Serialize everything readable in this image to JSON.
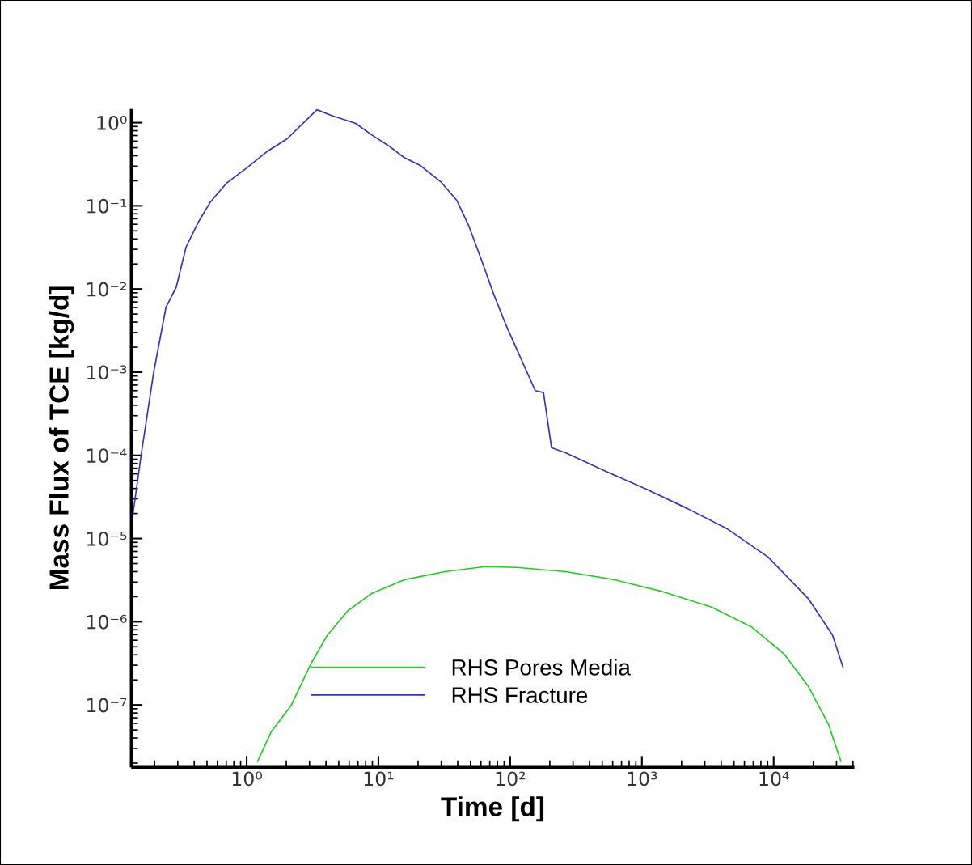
{
  "chart_data": {
    "type": "line",
    "xlabel": "Time [d]",
    "ylabel": "Mass Flux of TCE [kg/d]",
    "log": "xy",
    "grid": false,
    "legend": "bottom",
    "marker": "none",
    "line_style": "solid",
    "xlim": [
      0.133,
      41000
    ],
    "ylim": [
      1.78e-08,
      1.46
    ],
    "xticks": [
      {
        "value": 1,
        "label": "10⁰"
      },
      {
        "value": 10,
        "label": "10¹"
      },
      {
        "value": 100,
        "label": "10²"
      },
      {
        "value": 1000,
        "label": "10³"
      },
      {
        "value": 10000,
        "label": "10⁴"
      }
    ],
    "yticks": [
      {
        "value": 1e-07,
        "label": "10⁻⁷"
      },
      {
        "value": 1e-06,
        "label": "10⁻⁶"
      },
      {
        "value": 1e-05,
        "label": "10⁻⁵"
      },
      {
        "value": 0.0001,
        "label": "10⁻⁴"
      },
      {
        "value": 0.001,
        "label": "10⁻³"
      },
      {
        "value": 0.01,
        "label": "10⁻²"
      },
      {
        "value": 0.1,
        "label": "10⁻¹"
      },
      {
        "value": 1,
        "label": "10⁰"
      }
    ],
    "series": [
      {
        "name": "RHS Pores Media",
        "color": "#22cc22",
        "x": [
          1.21,
          1.53,
          2.17,
          3.1,
          4.1,
          5.84,
          8.93,
          15.7,
          31.8,
          64.5,
          113,
          265,
          617,
          1440,
          3380,
          6830,
          12000,
          18400,
          26100,
          32400
        ],
        "values": [
          2.1e-08,
          4.7e-08,
          9.8e-08,
          3.2e-07,
          6.9e-07,
          1.35e-06,
          2.2e-06,
          3.2e-06,
          4e-06,
          4.6e-06,
          4.5e-06,
          4e-06,
          3.2e-06,
          2.3e-06,
          1.5e-06,
          8.6e-07,
          4.1e-07,
          1.66e-07,
          5.8e-08,
          2.1e-08
        ]
      },
      {
        "name": "RHS Fracture",
        "color": "#3333bb",
        "x": [
          0.133,
          0.159,
          0.197,
          0.244,
          0.292,
          0.347,
          0.428,
          0.53,
          0.7,
          1.0,
          1.42,
          2.03,
          2.58,
          3.42,
          4.41,
          6.73,
          8.93,
          11.9,
          15.7,
          20.8,
          29.7,
          39.4,
          48.6,
          60.1,
          74.3,
          91.9,
          122,
          155,
          179,
          206,
          265,
          537,
          1089,
          2208,
          4470,
          9060,
          18400,
          28000,
          33700
        ],
        "values": [
          1.4e-05,
          0.000107,
          0.001,
          0.006,
          0.0105,
          0.032,
          0.063,
          0.111,
          0.186,
          0.285,
          0.447,
          0.64,
          0.93,
          1.43,
          1.22,
          0.98,
          0.71,
          0.53,
          0.38,
          0.305,
          0.195,
          0.116,
          0.057,
          0.0231,
          0.009,
          0.00385,
          0.0014,
          0.0006,
          0.00057,
          0.000124,
          0.000107,
          6.4e-05,
          3.9e-05,
          2.3e-05,
          1.3e-05,
          6e-06,
          1.88e-06,
          6.9e-07,
          2.8e-07
        ]
      }
    ]
  }
}
